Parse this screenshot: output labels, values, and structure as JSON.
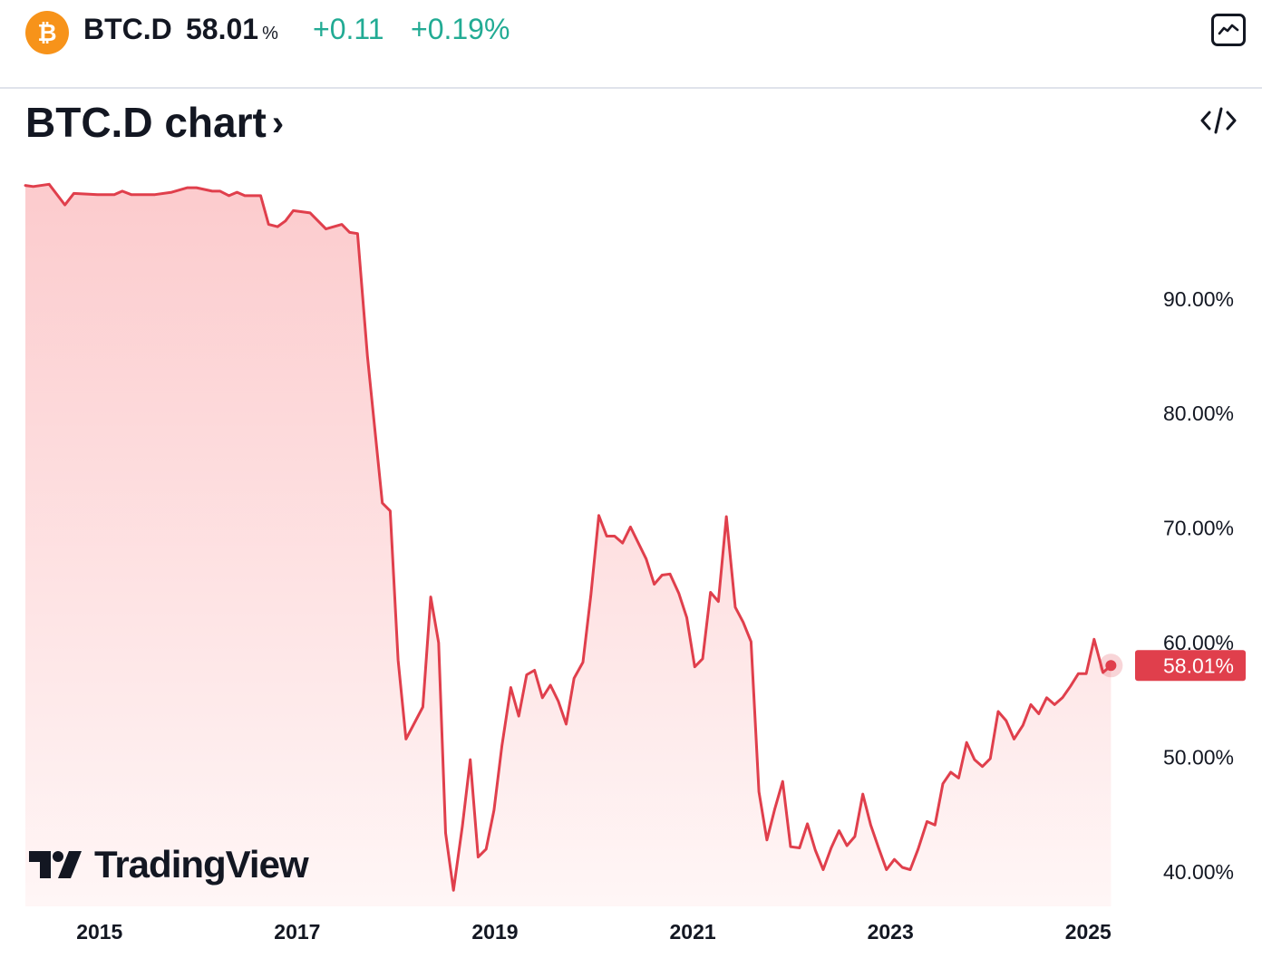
{
  "header": {
    "coin_icon": "bitcoin-icon",
    "coin_glyph": "₿",
    "ticker": "BTC.D",
    "price": "58.01",
    "price_unit": "%",
    "change": "+0.11",
    "change_pct": "+0.19%",
    "chart_button_icon": "line-chart-icon"
  },
  "title": {
    "text": "BTC.D chart",
    "chevron": "›",
    "embed_icon": "code-icon"
  },
  "colors": {
    "line": "#e03f4c",
    "positive": "#22ab94",
    "coin": "#f7931a",
    "fill_top": "#fccbcd",
    "fill_bottom": "#fff6f6"
  },
  "logo": {
    "icon": "tradingview-logo-icon",
    "text": "TradingView"
  },
  "chart_data": {
    "type": "area",
    "title": "",
    "xlabel": "",
    "ylabel": "",
    "ylim": [
      37,
      102
    ],
    "xlim": [
      2014.25,
      2025.3
    ],
    "y_ticks": [
      {
        "value": 90,
        "label": "90.00%"
      },
      {
        "value": 80,
        "label": "80.00%"
      },
      {
        "value": 70,
        "label": "70.00%"
      },
      {
        "value": 60,
        "label": "60.00%"
      },
      {
        "value": 50,
        "label": "50.00%"
      },
      {
        "value": 40,
        "label": "40.00%"
      }
    ],
    "x_ticks": [
      {
        "value": 2015,
        "label": "2015"
      },
      {
        "value": 2017,
        "label": "2017"
      },
      {
        "value": 2019,
        "label": "2019"
      },
      {
        "value": 2021,
        "label": "2021"
      },
      {
        "value": 2023,
        "label": "2023"
      },
      {
        "value": 2025,
        "label": "2025"
      }
    ],
    "last_value": 58.01,
    "last_label": "58.01%",
    "grid": false,
    "series": [
      {
        "x": [
          2014.25,
          2014.33,
          2014.49,
          2014.65,
          2014.74,
          2014.98,
          2015.15,
          2015.23,
          2015.32,
          2015.56,
          2015.73,
          2015.89,
          2015.98,
          2016.14,
          2016.22,
          2016.31,
          2016.39,
          2016.47,
          2016.63,
          2016.71,
          2016.8,
          2016.88,
          2016.96,
          2017.13,
          2017.29,
          2017.45,
          2017.53,
          2017.61,
          2017.71,
          2017.86,
          2017.94,
          2018.02,
          2018.1,
          2018.27,
          2018.35,
          2018.43,
          2018.5,
          2018.58,
          2018.67,
          2018.75,
          2018.83,
          2018.91,
          2018.99,
          2019.07,
          2019.16,
          2019.24,
          2019.32,
          2019.4,
          2019.48,
          2019.56,
          2019.64,
          2019.72,
          2019.8,
          2019.89,
          2019.97,
          2020.05,
          2020.13,
          2020.21,
          2020.29,
          2020.37,
          2020.53,
          2020.61,
          2020.69,
          2020.77,
          2020.86,
          2020.94,
          2021.02,
          2021.1,
          2021.18,
          2021.26,
          2021.34,
          2021.43,
          2021.51,
          2021.59,
          2021.67,
          2021.75,
          2021.83,
          2021.91,
          2021.99,
          2022.08,
          2022.16,
          2022.24,
          2022.32,
          2022.4,
          2022.48,
          2022.56,
          2022.64,
          2022.72,
          2022.8,
          2022.88,
          2022.96,
          2023.04,
          2023.12,
          2023.2,
          2023.28,
          2023.37,
          2023.45,
          2023.53,
          2023.61,
          2023.69,
          2023.77,
          2023.85,
          2023.93,
          2024.01,
          2024.09,
          2024.17,
          2024.25,
          2024.34,
          2024.42,
          2024.5,
          2024.58,
          2024.66,
          2024.74,
          2024.82,
          2024.9,
          2024.98,
          2025.06,
          2025.15,
          2025.23
        ],
        "y": [
          99.9,
          99.8,
          100.0,
          98.2,
          99.2,
          99.1,
          99.1,
          99.4,
          99.1,
          99.1,
          99.3,
          99.7,
          99.7,
          99.4,
          99.4,
          99.0,
          99.3,
          99.0,
          99.0,
          96.5,
          96.3,
          96.8,
          97.7,
          97.5,
          96.1,
          96.5,
          95.8,
          95.7,
          85.0,
          72.2,
          71.5,
          58.5,
          51.6,
          54.4,
          64.0,
          60.0,
          43.4,
          38.4,
          44.0,
          49.8,
          41.3,
          42.0,
          45.4,
          51.0,
          56.1,
          53.6,
          57.2,
          57.6,
          55.2,
          56.3,
          54.9,
          52.9,
          56.9,
          58.3,
          64.2,
          71.1,
          69.3,
          69.3,
          68.7,
          70.1,
          67.3,
          65.1,
          65.9,
          66.0,
          64.3,
          62.2,
          57.9,
          58.6,
          64.4,
          63.6,
          71.0,
          63.1,
          61.8,
          60.1,
          47.0,
          42.8,
          45.5,
          47.9,
          42.2,
          42.1,
          44.2,
          41.9,
          40.2,
          42.1,
          43.6,
          42.3,
          43.1,
          46.8,
          44.1,
          42.1,
          40.2,
          41.1,
          40.4,
          40.2,
          42.0,
          44.4,
          44.1,
          47.7,
          48.7,
          48.2,
          51.3,
          49.8,
          49.2,
          49.9,
          54.0,
          53.2,
          51.6,
          52.8,
          54.6,
          53.8,
          55.2,
          54.6,
          55.2,
          56.2,
          57.3,
          57.3,
          60.3,
          57.4,
          58.01
        ]
      }
    ]
  }
}
